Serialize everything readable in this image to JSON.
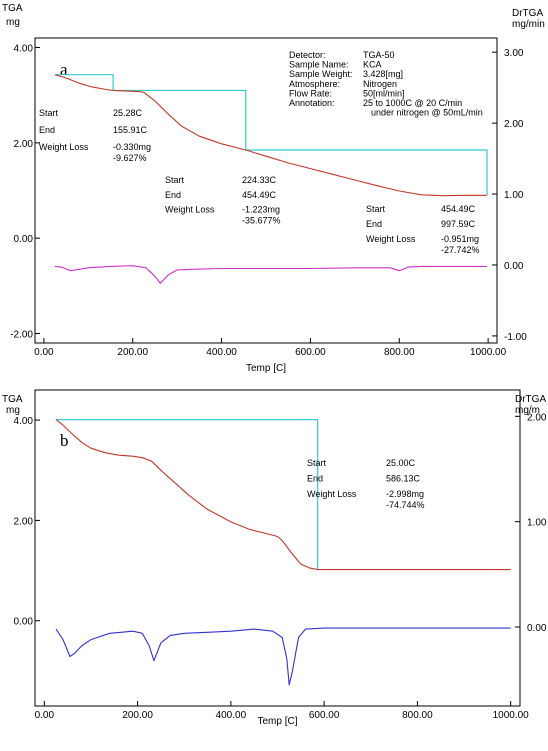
{
  "chart_data": [
    {
      "type": "line",
      "panel_label": "a",
      "left_axis": {
        "unit_top": "TGA",
        "unit_bottom": "mg",
        "ylim": [
          -2.2,
          4.2
        ],
        "ticks": [
          "4.00",
          "2.00",
          "0.00",
          "-2.00"
        ],
        "tick_values": [
          4,
          2,
          0,
          -2
        ]
      },
      "right_axis": {
        "unit_top": "DrTGA",
        "unit_bottom": "mg/min",
        "ylim": [
          -1.1,
          3.2
        ],
        "ticks": [
          "3.00",
          "2.00",
          "1.00",
          "0.00",
          "-1.00"
        ],
        "tick_values": [
          3,
          2,
          1,
          0,
          -1
        ]
      },
      "x_axis": {
        "label": "Temp  [C]",
        "xlim": [
          -20,
          1020
        ],
        "ticks": [
          "0.00",
          "200.00",
          "400.00",
          "600.00",
          "800.00",
          "1000.00"
        ],
        "tick_values": [
          0,
          200,
          400,
          600,
          800,
          1000
        ]
      },
      "info": [
        {
          "key": "Detector:",
          "value": "TGA-50"
        },
        {
          "key": "Sample Name:",
          "value": "KCA"
        },
        {
          "key": "Sample Weight:",
          "value": "3.428[mg]"
        },
        {
          "key": "Atmosphere:",
          "value": "Nitrogen"
        },
        {
          "key": "Flow Rate:",
          "value": "50[ml/min]"
        },
        {
          "key": "Annotation:",
          "value": "25 to 1000C @ 20 C/min"
        },
        {
          "key": "",
          "value": "under nitrogen @ 50mL/min"
        }
      ],
      "steps": [
        {
          "start_label": "Start",
          "start": "25.28C",
          "end_label": "End",
          "end": "155.91C",
          "loss_label": "Weight Loss",
          "loss_mg": "-0.330mg",
          "loss_pct": "-9.627%",
          "x1": 25.28,
          "x2": 155.91,
          "y_top": 3.43,
          "y_bottom": 3.1
        },
        {
          "start_label": "Start",
          "start": "224.33C",
          "end_label": "End",
          "end": "454.49C",
          "loss_label": "Weight Loss",
          "loss_mg": "-1.223mg",
          "loss_pct": "-35.677%",
          "x1": 155.91,
          "x2": 454.49,
          "y_top": 3.1,
          "y_bottom": 1.85
        },
        {
          "start_label": "Start",
          "start": "454.49C",
          "end_label": "End",
          "end": "997.59C",
          "loss_label": "Weight Loss",
          "loss_mg": "-0.951mg",
          "loss_pct": "-27.742%",
          "x1": 454.49,
          "x2": 997.59,
          "y_top": 1.85,
          "y_bottom": 0.9
        }
      ],
      "series": [
        {
          "axis": "left",
          "color": "#c0392b",
          "x": [
            25,
            50,
            80,
            110,
            140,
            155,
            180,
            210,
            225,
            250,
            280,
            310,
            350,
            400,
            454,
            500,
            550,
            600,
            650,
            700,
            750,
            800,
            850,
            900,
            950,
            997
          ],
          "y": [
            3.43,
            3.36,
            3.25,
            3.17,
            3.12,
            3.1,
            3.09,
            3.08,
            3.06,
            2.88,
            2.6,
            2.35,
            2.14,
            1.98,
            1.85,
            1.72,
            1.58,
            1.46,
            1.34,
            1.22,
            1.1,
            0.99,
            0.91,
            0.89,
            0.9,
            0.9
          ]
        },
        {
          "axis": "right",
          "color": "#cc33cc",
          "x": [
            25,
            40,
            60,
            100,
            150,
            200,
            230,
            250,
            262,
            280,
            300,
            340,
            400,
            500,
            600,
            700,
            780,
            800,
            820,
            850,
            900,
            950,
            997
          ],
          "y": [
            -0.02,
            -0.03,
            -0.08,
            -0.04,
            -0.02,
            -0.01,
            -0.04,
            -0.16,
            -0.26,
            -0.14,
            -0.07,
            -0.06,
            -0.05,
            -0.05,
            -0.05,
            -0.04,
            -0.04,
            -0.08,
            -0.03,
            -0.02,
            -0.02,
            -0.02,
            -0.02
          ]
        }
      ]
    },
    {
      "type": "line",
      "panel_label": "b",
      "left_axis": {
        "unit_top": "TGA",
        "unit_bottom": "mg",
        "ylim": [
          -1.7,
          4.6
        ],
        "ticks": [
          "4.00",
          "2.00",
          "0.00"
        ],
        "tick_values": [
          4,
          2,
          0
        ]
      },
      "right_axis": {
        "unit_top": "DrTGA",
        "unit_bottom": "mg/m",
        "ylim": [
          -0.75,
          2.25
        ],
        "ticks": [
          "2.00",
          "1.00",
          "0.00"
        ],
        "tick_values": [
          2,
          1,
          0
        ]
      },
      "x_axis": {
        "label": "Temp  [C]",
        "xlim": [
          -20,
          1020
        ],
        "ticks": [
          "0.00",
          "200.00",
          "400.00",
          "600.00",
          "800.00",
          "1000.00"
        ],
        "tick_values": [
          0,
          200,
          400,
          600,
          800,
          1000
        ]
      },
      "steps": [
        {
          "start_label": "Start",
          "start": "25.00C",
          "end_label": "End",
          "end": "586.13C",
          "loss_label": "Weight Loss",
          "loss_mg": "-2.998mg",
          "loss_pct": "-74.744%",
          "x1": 25,
          "x2": 586.13,
          "y_top": 4.01,
          "y_bottom": 1.02
        }
      ],
      "series": [
        {
          "axis": "left",
          "color": "#c0392b",
          "x": [
            25,
            40,
            60,
            80,
            100,
            130,
            160,
            190,
            210,
            230,
            250,
            280,
            310,
            350,
            400,
            440,
            480,
            500,
            510,
            530,
            550,
            570,
            586,
            600,
            700,
            800,
            900,
            1000
          ],
          "y": [
            4.01,
            3.9,
            3.72,
            3.56,
            3.44,
            3.35,
            3.3,
            3.28,
            3.25,
            3.18,
            3.0,
            2.75,
            2.5,
            2.22,
            1.97,
            1.82,
            1.73,
            1.68,
            1.6,
            1.35,
            1.13,
            1.05,
            1.02,
            1.02,
            1.02,
            1.02,
            1.02,
            1.02
          ]
        },
        {
          "axis": "right",
          "color": "#3333cc",
          "x": [
            25,
            40,
            55,
            65,
            80,
            100,
            140,
            190,
            210,
            225,
            235,
            250,
            270,
            300,
            350,
            400,
            450,
            490,
            510,
            520,
            525,
            532,
            545,
            560,
            600,
            700,
            800,
            900,
            1000
          ],
          "y": [
            -0.02,
            -0.12,
            -0.28,
            -0.25,
            -0.18,
            -0.12,
            -0.06,
            -0.04,
            -0.06,
            -0.18,
            -0.32,
            -0.15,
            -0.08,
            -0.06,
            -0.05,
            -0.04,
            -0.02,
            -0.04,
            -0.1,
            -0.3,
            -0.55,
            -0.42,
            -0.1,
            -0.02,
            -0.01,
            -0.01,
            -0.01,
            -0.01,
            -0.01
          ]
        }
      ]
    }
  ]
}
